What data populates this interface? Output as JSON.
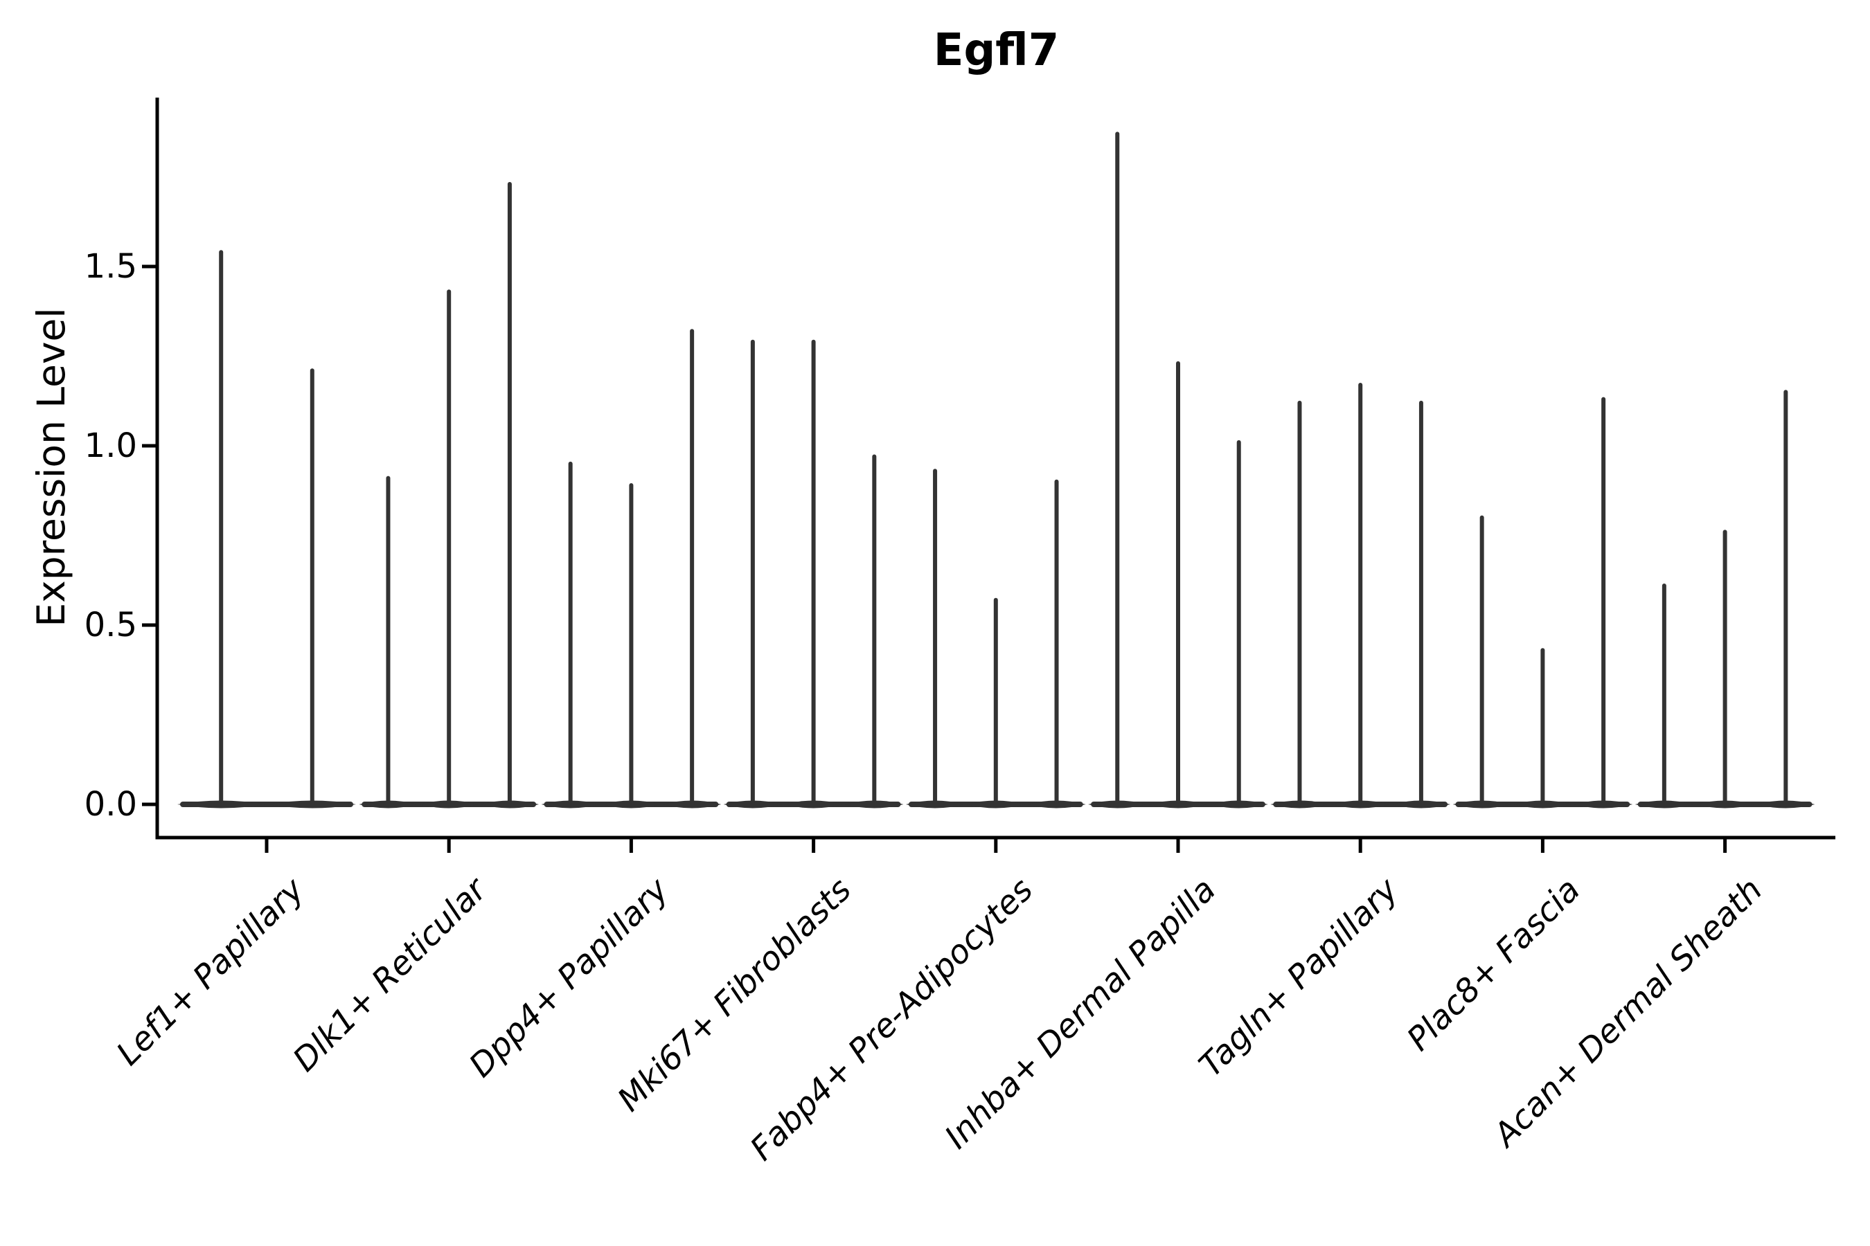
{
  "figure": {
    "title": "Egfl7",
    "ylabel": "Expression Level"
  },
  "chart_data": {
    "type": "violin",
    "title": "Egfl7",
    "xlabel": "",
    "ylabel": "Expression Level",
    "categories": [
      "Lef1+ Papillary",
      "Dlk1+ Reticular",
      "Dpp4+ Papillary",
      "Mki67+ Fibroblasts",
      "Fabp4+ Pre-Adipocytes",
      "Inhba+ Dermal Papilla",
      "Tagln+ Papillary",
      "Plac8+ Fascia",
      "Acan+ Dermal Sheath"
    ],
    "groups": [
      {
        "category": "Lef1+ Papillary",
        "violin_maxima": [
          1.54,
          1.21
        ]
      },
      {
        "category": "Dlk1+ Reticular",
        "violin_maxima": [
          0.91,
          1.43,
          1.73
        ]
      },
      {
        "category": "Dpp4+ Papillary",
        "violin_maxima": [
          0.95,
          0.89,
          1.32
        ]
      },
      {
        "category": "Mki67+ Fibroblasts",
        "violin_maxima": [
          1.29,
          1.29,
          0.97
        ]
      },
      {
        "category": "Fabp4+ Pre-Adipocytes",
        "violin_maxima": [
          0.93,
          0.57,
          0.9
        ]
      },
      {
        "category": "Inhba+ Dermal Papilla",
        "violin_maxima": [
          1.87,
          1.23,
          1.01
        ]
      },
      {
        "category": "Tagln+ Papillary",
        "violin_maxima": [
          1.12,
          1.17,
          1.12
        ]
      },
      {
        "category": "Plac8+ Fascia",
        "violin_maxima": [
          0.8,
          0.43,
          1.13
        ]
      },
      {
        "category": "Acan+ Dermal Sheath",
        "violin_maxima": [
          0.61,
          0.76,
          1.15
        ]
      }
    ],
    "yticks": [
      "0.0",
      "0.5",
      "1.0",
      "1.5"
    ],
    "ytick_values": [
      0.0,
      0.5,
      1.0,
      1.5
    ],
    "ylim": [
      -0.09,
      1.97
    ],
    "grid": false,
    "legend": false
  },
  "style": {
    "violin_color": "#333333",
    "axis_color": "#000000",
    "text_color": "#000000",
    "background": "#ffffff"
  }
}
